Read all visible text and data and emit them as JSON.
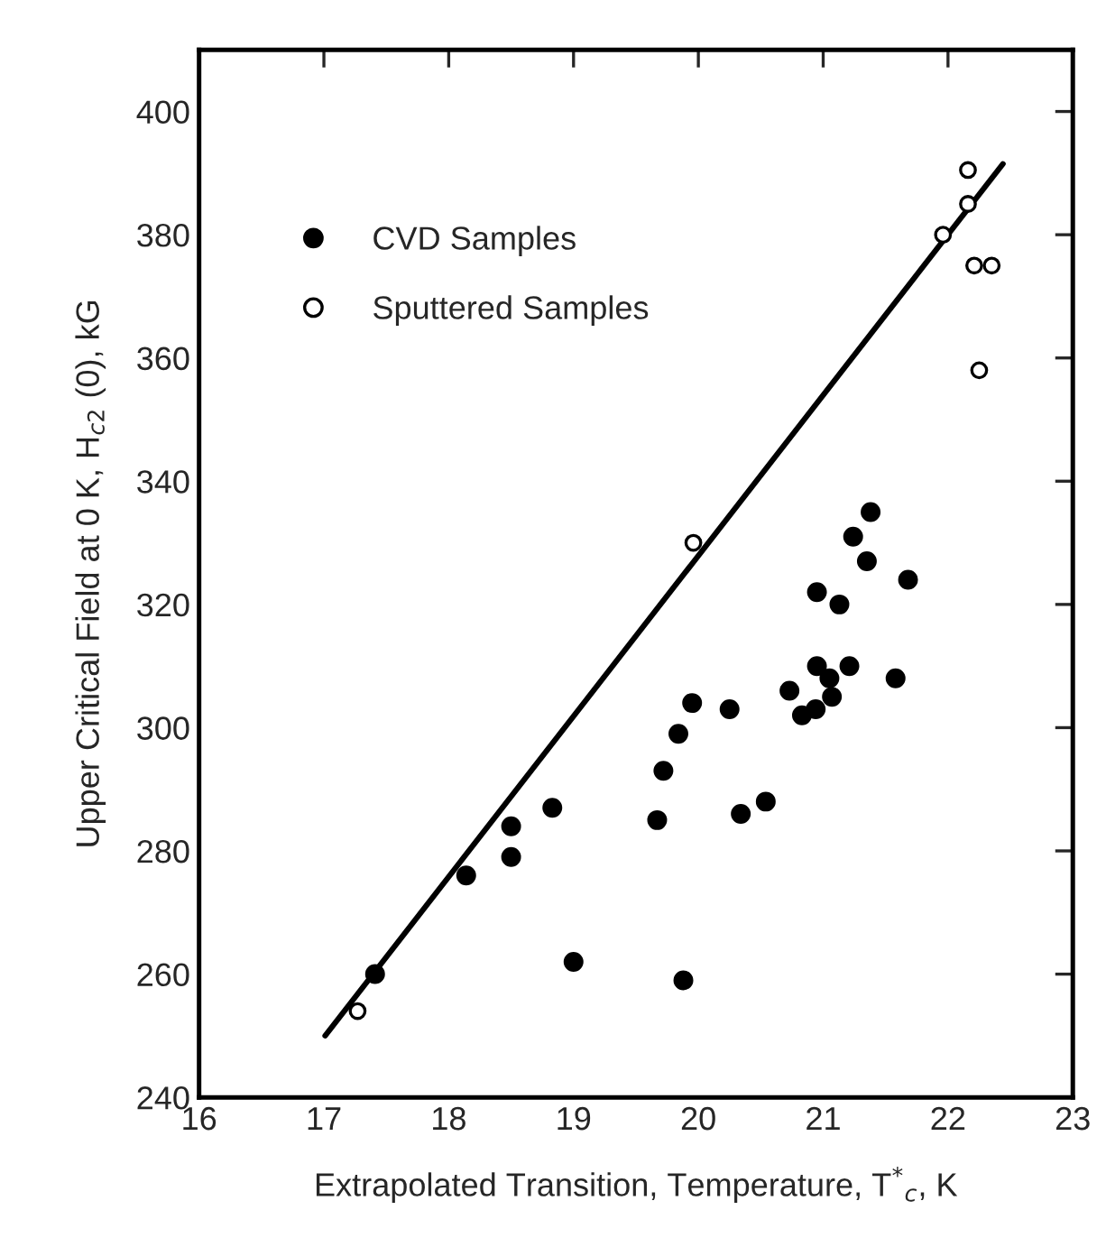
{
  "chart_data": {
    "type": "scatter",
    "xlabel": "Extrapolated Transition, Temperature, T$^{*}$$_{c}$, K",
    "ylabel": "Upper Critical Field at 0 K, H$_{c2}$ (0), kG",
    "xlim": [
      16,
      23
    ],
    "xticks": [
      16,
      17,
      18,
      19,
      20,
      21,
      22,
      23
    ],
    "ylim": [
      240,
      410
    ],
    "yticks": [
      240,
      260,
      280,
      300,
      320,
      340,
      360,
      380,
      400
    ],
    "grid": false,
    "legend": "top left",
    "series": [
      {
        "name": "CVD Samples",
        "color": "#000000",
        "marker": "circle",
        "x": [
          17.41,
          18.14,
          18.5,
          18.5,
          18.83,
          19.0,
          19.67,
          19.72,
          19.84,
          19.88,
          19.95,
          20.25,
          20.34,
          20.54,
          20.73,
          20.83,
          20.94,
          20.95,
          20.95,
          21.05,
          21.07,
          21.13,
          21.21,
          21.24,
          21.35,
          21.38,
          21.58,
          21.68
        ],
        "values": [
          260,
          276,
          284,
          279,
          287,
          262,
          285,
          293,
          299,
          259,
          304,
          303,
          286,
          288,
          306,
          302,
          303,
          310,
          322,
          308,
          305,
          320,
          310,
          331,
          327,
          335,
          308,
          324
        ]
      },
      {
        "name": "Sputtered Samples",
        "color": "#ffffff",
        "marker": "circle",
        "x": [
          17.27,
          19.96,
          21.96,
          22.16,
          22.16,
          22.21,
          22.35,
          22.25
        ],
        "values": [
          254,
          330,
          380,
          390.5,
          385,
          375,
          375,
          358
        ]
      },
      {
        "type": "line",
        "color": "#000000",
        "marker": "none",
        "x": [
          17.01,
          22.44
        ],
        "values": [
          250,
          391.5
        ]
      }
    ]
  }
}
